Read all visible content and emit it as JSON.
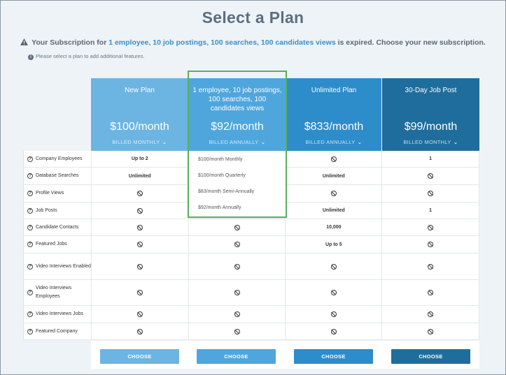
{
  "title": "Select a Plan",
  "notice": {
    "prefix": "Your Subscription for ",
    "plan_desc": "1 employee, 10 job postings, 100 searches, 100 candidates views",
    "suffix": " is expired. Choose your new subscription."
  },
  "hint": "Please select a plan to add additional features.",
  "plans": [
    {
      "name": "New Plan",
      "price": "$100/month",
      "billed": "BILLED MONTHLY"
    },
    {
      "name": "1 employee, 10 job postings, 100 searches, 100 candidates views",
      "price": "$92/month",
      "billed": "BILLED ANNUALLY"
    },
    {
      "name": "Unlimited Plan",
      "price": "$833/month",
      "billed": "BILLED ANNUALLY"
    },
    {
      "name": "30-Day Job Post",
      "price": "$99/month",
      "billed": "BILLED MONTHLY"
    }
  ],
  "features": [
    {
      "label": "Company Employees",
      "values": [
        "Up to 2",
        "",
        "no",
        "1"
      ]
    },
    {
      "label": "Database Searches",
      "values": [
        "Unlimited",
        "",
        "Unlimited",
        "no"
      ]
    },
    {
      "label": "Profile Views",
      "values": [
        "no",
        "",
        "no",
        "no"
      ]
    },
    {
      "label": "Job Posts",
      "values": [
        "no",
        "",
        "Unlimited",
        "1"
      ]
    },
    {
      "label": "Candidate Contacts",
      "values": [
        "no",
        "no",
        "10,000",
        "no"
      ]
    },
    {
      "label": "Featured Jobs",
      "values": [
        "no",
        "no",
        "Up to 5",
        "no"
      ]
    },
    {
      "label": "Video Interviews Enabled",
      "values": [
        "no",
        "no",
        "no",
        "no"
      ]
    },
    {
      "label": "Video Interviews Employees",
      "values": [
        "no",
        "no",
        "no",
        "no"
      ]
    },
    {
      "label": "Video Interviews Jobs",
      "values": [
        "no",
        "no",
        "no",
        "no"
      ]
    },
    {
      "label": "Featured Company",
      "values": [
        "no",
        "no",
        "no",
        "no"
      ]
    }
  ],
  "billing_options": [
    "$100/month Monthly",
    "$100/month Quarterly",
    "$83/month Semi-Annually",
    "$92/month Annually"
  ],
  "choose_label": "CHOOSE"
}
